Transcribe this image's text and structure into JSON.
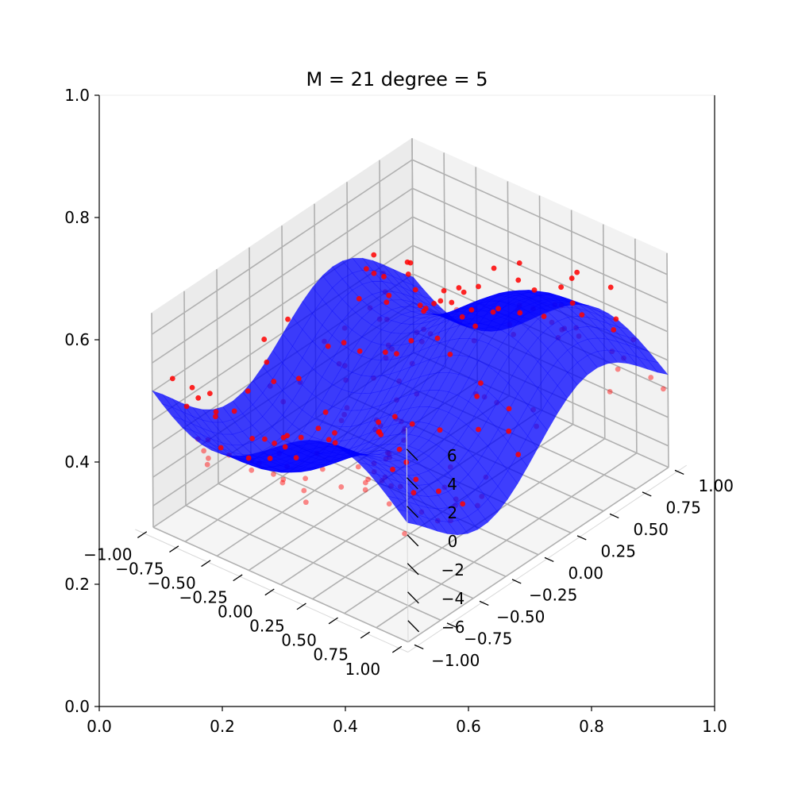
{
  "chart_data": {
    "type": "surface3d_scatter",
    "title": "M = 21 degree = 5",
    "outer_axes": {
      "xlim": [
        0.0,
        1.0
      ],
      "ylim": [
        0.0,
        1.0
      ],
      "xticks": [
        "0.0",
        "0.2",
        "0.4",
        "0.6",
        "0.8",
        "1.0"
      ],
      "yticks": [
        "0.0",
        "0.2",
        "0.4",
        "0.6",
        "0.8",
        "1.0"
      ]
    },
    "axes3d": {
      "xlim": [
        -1.0,
        1.0
      ],
      "ylim": [
        -1.0,
        1.0
      ],
      "zlim": [
        -7.5,
        7.5
      ],
      "xticks": [
        "-1.00",
        "-0.75",
        "-0.50",
        "-0.25",
        "0.00",
        "0.25",
        "0.50",
        "0.75",
        "1.00"
      ],
      "yticks": [
        "-1.00",
        "-0.75",
        "-0.50",
        "-0.25",
        "0.00",
        "0.25",
        "0.50",
        "0.75",
        "1.00"
      ],
      "zticks": [
        "-6",
        "-4",
        "-2",
        "0",
        "2",
        "4",
        "6"
      ],
      "grid": true
    },
    "surface": {
      "color": "#0000ff",
      "alpha": 0.75
    },
    "points": {
      "color": "#ff0000",
      "n": 210,
      "noise_range": [
        -2.5,
        2.5
      ]
    }
  }
}
